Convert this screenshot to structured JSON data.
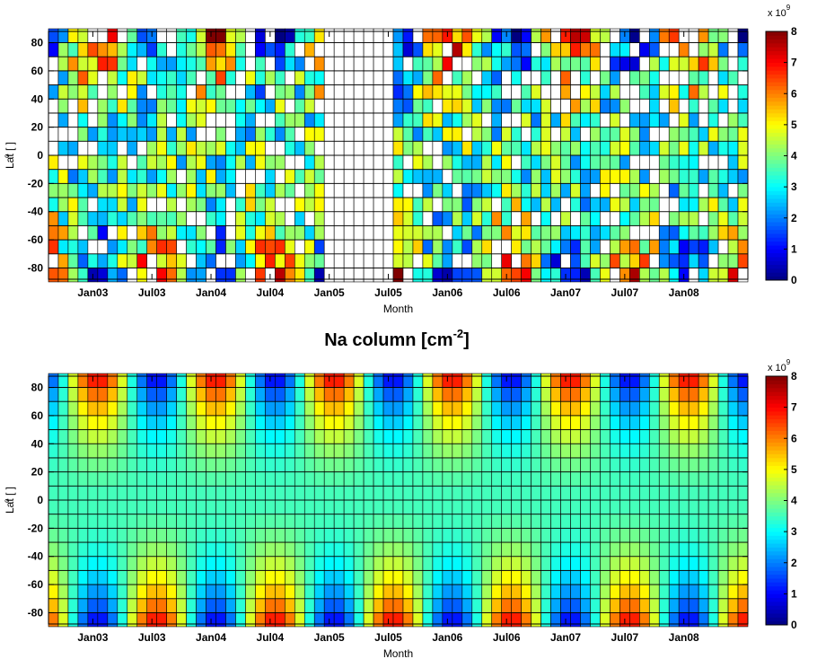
{
  "figure": {
    "title_main": "Na column [cm",
    "title_exp": "-2",
    "title_close": "]"
  },
  "chart_data": [
    {
      "type": "heatmap",
      "panel": "top",
      "xlabel": "Month",
      "ylabel": "Lat [ ]",
      "ylabel_sup": "o",
      "x_ticks": [
        "Jan03",
        "Jul03",
        "Jan04",
        "Jul04",
        "Jan05",
        "Jul05",
        "Jan06",
        "Jul06",
        "Jan07",
        "Jul07",
        "Jan08"
      ],
      "x_start_month": "Sep02",
      "n_months": 71,
      "lat_bins_deg": [
        -85,
        -75,
        -65,
        -55,
        -45,
        -35,
        -25,
        -15,
        -5,
        5,
        15,
        25,
        35,
        45,
        55,
        65,
        75,
        85
      ],
      "y_ticks": [
        -80,
        -60,
        -40,
        -20,
        0,
        20,
        40,
        60,
        80
      ],
      "ylim": [
        -88,
        88
      ],
      "color_range": [
        0,
        8
      ],
      "colorbar_ticks": [
        0,
        1,
        2,
        3,
        4,
        5,
        6,
        7,
        8
      ],
      "colorbar_scale": "x 10",
      "colorbar_exp": "9",
      "colormap": "jet",
      "grid": true,
      "data_gap_months": [
        "Jan05",
        "Feb05",
        "Mar05",
        "Apr05",
        "May05",
        "Jun05",
        "Jul05"
      ]
    },
    {
      "type": "heatmap",
      "panel": "bottom",
      "xlabel": "Month",
      "ylabel": "Lat [ ]",
      "ylabel_sup": "o",
      "x_ticks": [
        "Jan03",
        "Jul03",
        "Jan04",
        "Jul04",
        "Jan05",
        "Jul05",
        "Jan06",
        "Jul06",
        "Jan07",
        "Jul07",
        "Jan08"
      ],
      "x_start_month": "Sep02",
      "n_months": 71,
      "lat_bins_deg": [
        -85,
        -75,
        -65,
        -55,
        -45,
        -35,
        -25,
        -15,
        -5,
        5,
        15,
        25,
        35,
        45,
        55,
        65,
        75,
        85
      ],
      "y_ticks": [
        -80,
        -60,
        -40,
        -20,
        0,
        20,
        40,
        60,
        80
      ],
      "ylim": [
        -88,
        88
      ],
      "color_range": [
        0,
        8
      ],
      "colorbar_ticks": [
        0,
        1,
        2,
        3,
        4,
        5,
        6,
        7,
        8
      ],
      "colorbar_scale": "x 10",
      "colorbar_exp": "9",
      "colormap": "jet",
      "grid": true
    }
  ]
}
